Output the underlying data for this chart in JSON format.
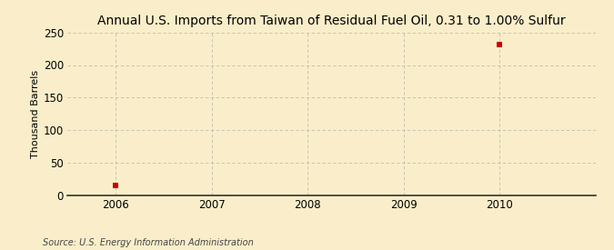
{
  "title": "Annual U.S. Imports from Taiwan of Residual Fuel Oil, 0.31 to 1.00% Sulfur",
  "ylabel": "Thousand Barrels",
  "source": "Source: U.S. Energy Information Administration",
  "x_data": [
    2006,
    2010
  ],
  "y_data": [
    14,
    232
  ],
  "xlim": [
    2005.5,
    2011.0
  ],
  "ylim": [
    0,
    250
  ],
  "yticks": [
    0,
    50,
    100,
    150,
    200,
    250
  ],
  "xticks": [
    2006,
    2007,
    2008,
    2009,
    2010
  ],
  "marker_color": "#cc0000",
  "background_color": "#faeeca",
  "grid_color": "#bbbbbb",
  "title_fontsize": 10,
  "label_fontsize": 8,
  "tick_fontsize": 8.5,
  "source_fontsize": 7
}
